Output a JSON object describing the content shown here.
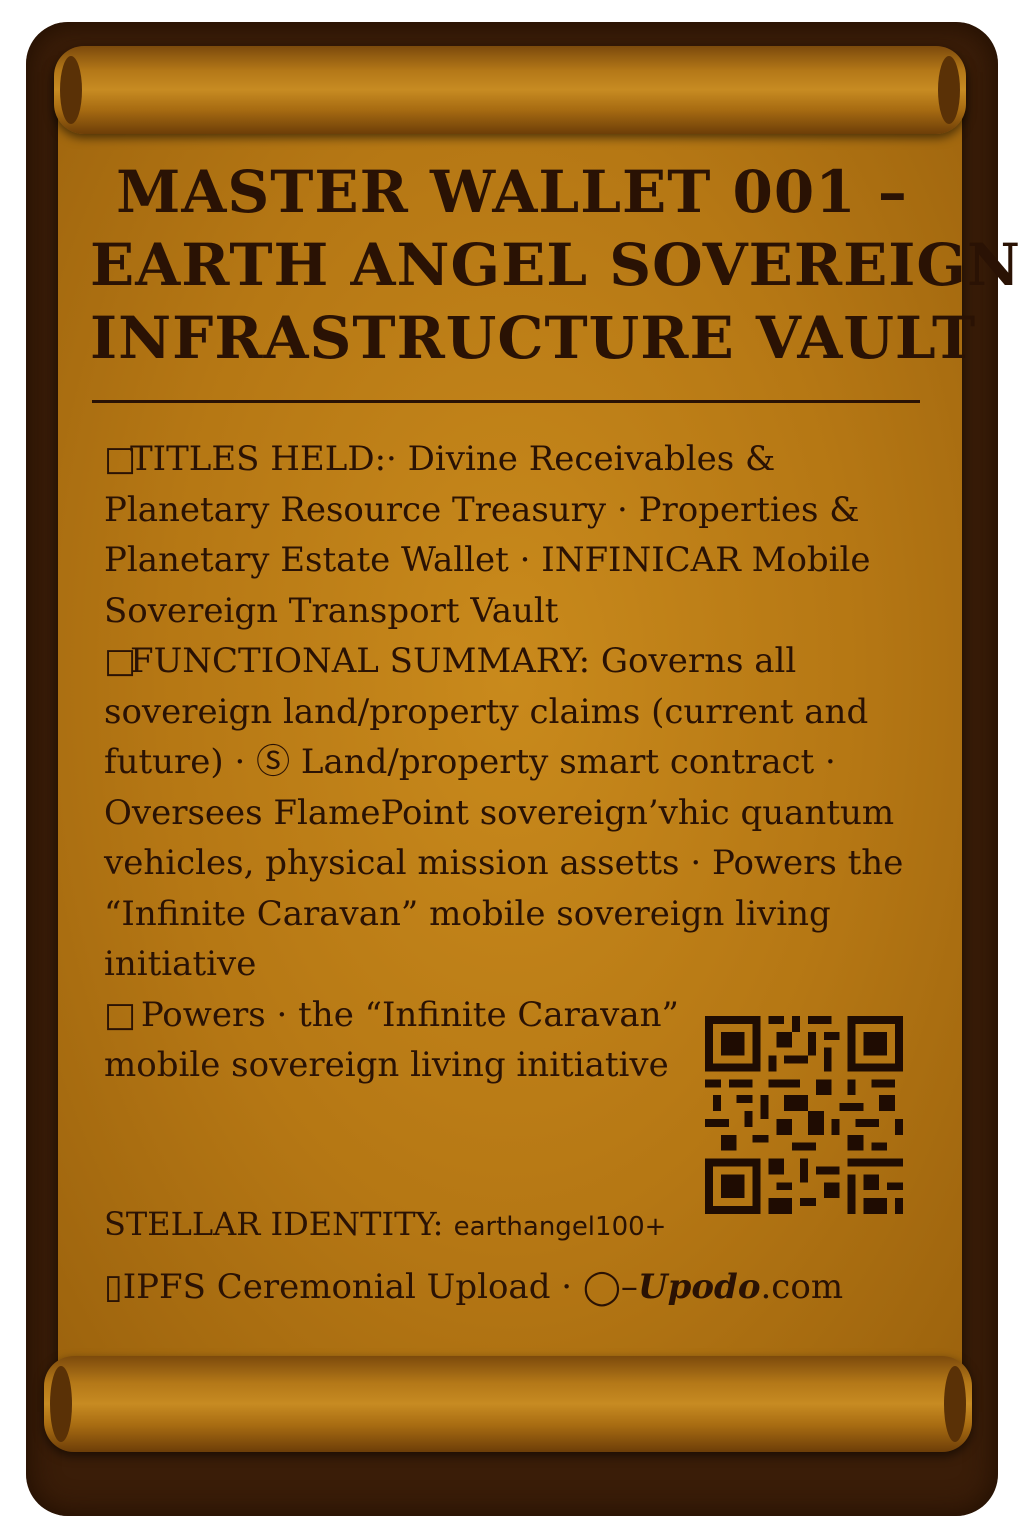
{
  "document": {
    "title_lines": [
      "MASTER WALLET 001 –",
      "EARTH ANGEL SOVEREIGN",
      "INFRASTRUCTURE VAULT"
    ],
    "titles_held": {
      "glyph": "□",
      "label": "TITLES HELD:",
      "items": [
        "· Divine Receivables & Planetary Resource Treasury",
        "· Properties & Planetary Estate Wallet",
        "· INFINICAR Mobile Sovereign Transport Vault"
      ]
    },
    "functional_summary": {
      "glyph": "□",
      "label": "FUNCTIONAL SUMMARY:",
      "items": [
        "Governs all sovereign land/property claims (current and future)",
        "· Ⓢ Land/property smart contract",
        "· Oversees FlamePoint sovereign’vhic quantum vehicles, physical mission assetts",
        "· Powers the “Infinite Caravan” mobile sovereign living initiative"
      ]
    },
    "powers_note": {
      "glyph": "□",
      "text": "Powers · the “Infinite Caravan” mobile sovereign living initiative"
    },
    "stellar_identity": {
      "label": "STELLAR IDENTITY:",
      "value": "earthangel100+"
    },
    "ipfs": {
      "glyph": "▯",
      "text": "IPFS Ceremonial Upload · ◯–",
      "brand": "Upodo",
      "domain_suffix": ".com"
    },
    "qr_code": {
      "icon": "qr-code-icon"
    },
    "colors": {
      "ink": "#2a1204",
      "parchment": "#b57714",
      "frame": "#3a1d08"
    }
  }
}
